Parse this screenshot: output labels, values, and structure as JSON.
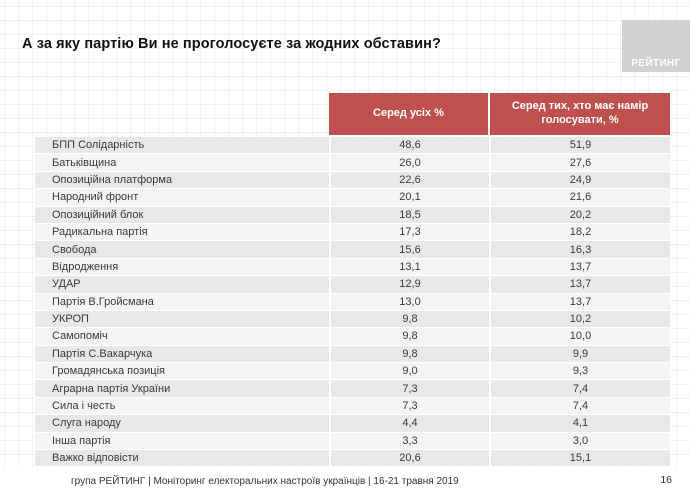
{
  "title": "А за яку партію Ви не проголосуєте за жодних обставин?",
  "logo": {
    "text": "РЕЙТИНГ"
  },
  "colors": {
    "header_red": "#c0504d",
    "row_odd": "#e9e8e8",
    "row_even": "#f4f4f3",
    "logo_gray": "#d2d1cf"
  },
  "table": {
    "columns": [
      "Серед усіх %",
      "Серед тих, хто має намір голосувати, %"
    ],
    "rows": [
      {
        "party": "БПП Солідарність",
        "all": "48,6",
        "voters": "51,9"
      },
      {
        "party": "Батьківщина",
        "all": "26,0",
        "voters": "27,6"
      },
      {
        "party": "Опозиційна платформа",
        "all": "22,6",
        "voters": "24,9"
      },
      {
        "party": "Народний фронт",
        "all": "20,1",
        "voters": "21,6"
      },
      {
        "party": "Опозиційний блок",
        "all": "18,5",
        "voters": "20,2"
      },
      {
        "party": "Радикальна партія",
        "all": "17,3",
        "voters": "18,2"
      },
      {
        "party": "Свобода",
        "all": "15,6",
        "voters": "16,3"
      },
      {
        "party": "Відродження",
        "all": "13,1",
        "voters": "13,7"
      },
      {
        "party": "УДАР",
        "all": "12,9",
        "voters": "13,7"
      },
      {
        "party": "Партія В.Гройсмана",
        "all": "13,0",
        "voters": "13,7"
      },
      {
        "party": "УКРОП",
        "all": "9,8",
        "voters": "10,2"
      },
      {
        "party": "Самопоміч",
        "all": "9,8",
        "voters": "10,0"
      },
      {
        "party": "Партія С.Вакарчука",
        "all": "9,8",
        "voters": "9,9"
      },
      {
        "party": "Громадянська позиція",
        "all": "9,0",
        "voters": "9,3"
      },
      {
        "party": "Аграрна партія України",
        "all": "7,3",
        "voters": "7,4"
      },
      {
        "party": "Сила і честь",
        "all": "7,3",
        "voters": "7,4"
      },
      {
        "party": "Слуга народу",
        "all": "4,4",
        "voters": "4,1"
      },
      {
        "party": "Інша партія",
        "all": "3,3",
        "voters": "3,0"
      },
      {
        "party": "Важко відповісти",
        "all": "20,6",
        "voters": "15,1"
      }
    ]
  },
  "footer": {
    "source": "група РЕЙТИНГ | Моніторинг електоральних настроїв українців | 16-21 травня 2019",
    "page": "16"
  },
  "chart_data": {
    "type": "table",
    "title": "А за яку партію Ви не проголосуєте за жодних обставин?",
    "categories": [
      "БПП Солідарність",
      "Батьківщина",
      "Опозиційна платформа",
      "Народний фронт",
      "Опозиційний блок",
      "Радикальна партія",
      "Свобода",
      "Відродження",
      "УДАР",
      "Партія В.Гройсмана",
      "УКРОП",
      "Самопоміч",
      "Партія С.Вакарчука",
      "Громадянська позиція",
      "Аграрна партія України",
      "Сила і честь",
      "Слуга народу",
      "Інша партія",
      "Важко відповісти"
    ],
    "series": [
      {
        "name": "Серед усіх %",
        "values": [
          48.6,
          26.0,
          22.6,
          20.1,
          18.5,
          17.3,
          15.6,
          13.1,
          12.9,
          13.0,
          9.8,
          9.8,
          9.8,
          9.0,
          7.3,
          7.3,
          4.4,
          3.3,
          20.6
        ]
      },
      {
        "name": "Серед тих, хто має намір голосувати, %",
        "values": [
          51.9,
          27.6,
          24.9,
          21.6,
          20.2,
          18.2,
          16.3,
          13.7,
          13.7,
          13.7,
          10.2,
          10.0,
          9.9,
          9.3,
          7.4,
          7.4,
          4.1,
          3.0,
          15.1
        ]
      }
    ]
  }
}
